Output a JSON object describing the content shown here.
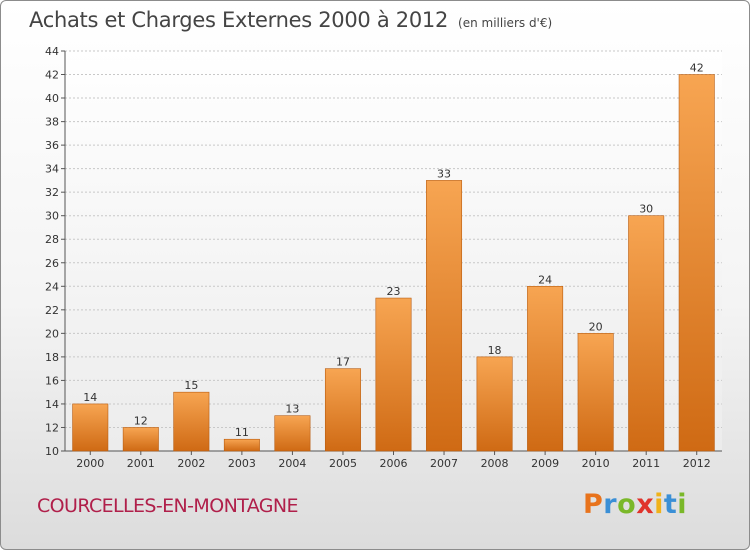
{
  "header": {
    "title": "Achats et Charges Externes 2000 à 2012",
    "subtitle": "(en milliers d'€)"
  },
  "footer": {
    "commune": "COURCELLES-EN-MONTAGNE",
    "logo_letters": [
      "P",
      "r",
      "o",
      "x",
      "i",
      "t",
      "i"
    ],
    "logo_colors": [
      "#e8731c",
      "#3a8fd6",
      "#7ab829",
      "#e0332b",
      "#f0b21a",
      "#3a8fd6",
      "#7ab829"
    ]
  },
  "chart_data": {
    "type": "bar",
    "title": "Achats et Charges Externes 2000 à 2012",
    "subtitle": "(en milliers d'€)",
    "xlabel": "",
    "ylabel": "",
    "categories": [
      "2000",
      "2001",
      "2002",
      "2003",
      "2004",
      "2005",
      "2006",
      "2007",
      "2008",
      "2009",
      "2010",
      "2011",
      "2012"
    ],
    "values": [
      14,
      12,
      15,
      11,
      13,
      17,
      23,
      33,
      18,
      24,
      20,
      30,
      42
    ],
    "ylim": [
      10,
      44
    ],
    "yticks": [
      10,
      12,
      14,
      16,
      18,
      20,
      22,
      24,
      26,
      28,
      30,
      32,
      34,
      36,
      38,
      40,
      42,
      44
    ],
    "grid": true,
    "bar_color_top": "#f7a552",
    "bar_color_bottom": "#cf6a14"
  }
}
